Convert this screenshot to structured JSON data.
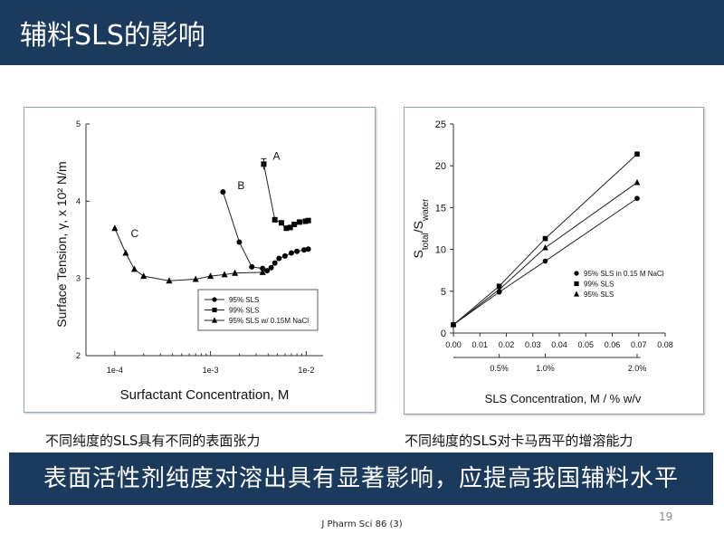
{
  "slide": {
    "title": "辅料SLS的影响",
    "caption_left": "不同纯度的SLS具有不同的表面张力",
    "caption_right": "不同纯度的SLS对卡马西平的增溶能力",
    "banner": "表面活性剂纯度对溶出具有显著影响，应提高我国辅料水平",
    "citation": "J Pharm Sci 86 (3)",
    "page_number": "19"
  },
  "colors": {
    "header": "#1c3a5c",
    "banner": "#1c3a5c",
    "text_on_dark": "#ffffff"
  },
  "chart_data": [
    {
      "type": "line",
      "xscale": "log",
      "xlabel": "Surfactant Concentration, M",
      "ylabel": "Surface Tension, γ, x 10² N/m",
      "xlim": [
        5e-05,
        0.015
      ],
      "ylim": [
        2,
        5
      ],
      "xticks": [
        "1e-4",
        "1e-3",
        "1e-2"
      ],
      "yticks": [
        "2",
        "3",
        "4",
        "5"
      ],
      "legend": "right, lower-middle",
      "series": [
        {
          "name": "95% SLS",
          "marker": "circle",
          "label": "B",
          "x": [
            0.00135,
            0.002,
            0.0027,
            0.0035,
            0.0039,
            0.0043,
            0.0047,
            0.0052,
            0.006,
            0.007,
            0.008,
            0.0095,
            0.0105
          ],
          "y": [
            4.12,
            3.47,
            3.15,
            3.13,
            3.1,
            3.14,
            3.2,
            3.26,
            3.29,
            3.33,
            3.35,
            3.37,
            3.38
          ]
        },
        {
          "name": "99% SLS",
          "marker": "square",
          "label": "A",
          "x": [
            0.0036,
            0.0047,
            0.0055,
            0.0062,
            0.0068,
            0.0075,
            0.0085,
            0.0098,
            0.0105
          ],
          "y": [
            4.48,
            3.76,
            3.72,
            3.65,
            3.66,
            3.7,
            3.73,
            3.74,
            3.75
          ]
        },
        {
          "name": "95% SLS w/ 0.15M NaCl",
          "marker": "triangle",
          "label": "C",
          "x": [
            0.0001,
            0.00013,
            0.00016,
            0.0002,
            0.00037,
            0.0007,
            0.001,
            0.0014,
            0.0018,
            0.0035
          ],
          "y": [
            3.65,
            3.33,
            3.12,
            3.03,
            2.97,
            2.99,
            3.03,
            3.05,
            3.07,
            3.08
          ]
        }
      ]
    },
    {
      "type": "line",
      "xlabel": "SLS Concentration, M / % w/v",
      "ylabel": "S_total/S_water",
      "xlim": [
        0,
        0.08
      ],
      "ylim": [
        0,
        25
      ],
      "xticks": [
        "0.00",
        "0.01",
        "0.02",
        "0.03",
        "0.04",
        "0.05",
        "0.06",
        "0.07",
        "0.08"
      ],
      "yticks": [
        "0",
        "5",
        "10",
        "15",
        "20",
        "25"
      ],
      "secondary_xticks": [
        {
          "x": 0.0173,
          "label": "0.5%"
        },
        {
          "x": 0.0347,
          "label": "1.0%"
        },
        {
          "x": 0.0694,
          "label": "2.0%"
        }
      ],
      "legend": "lower-right",
      "series": [
        {
          "name": "95% SLS in 0.15 M NaCl",
          "marker": "circle",
          "x": [
            0,
            0.0173,
            0.0347,
            0.0694
          ],
          "y": [
            1.0,
            4.9,
            8.6,
            16.1
          ]
        },
        {
          "name": "99% SLS",
          "marker": "square",
          "x": [
            0,
            0.0173,
            0.0347,
            0.0694
          ],
          "y": [
            1.0,
            5.6,
            11.3,
            21.4
          ]
        },
        {
          "name": "95% SLS",
          "marker": "triangle",
          "x": [
            0,
            0.0173,
            0.0347,
            0.0694
          ],
          "y": [
            1.0,
            5.2,
            10.2,
            18.0
          ]
        }
      ]
    }
  ]
}
